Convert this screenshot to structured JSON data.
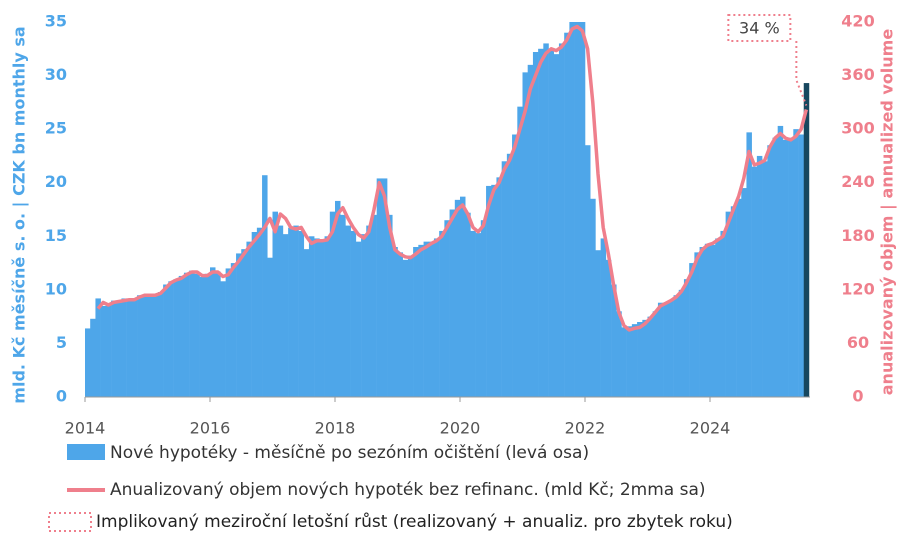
{
  "chart_data": {
    "type": "bar",
    "y_label": "mld. Kč měsíčně s. o. | CZK bn monthly sa",
    "y2_label": "anualizovaný objem | annualized volume",
    "x": [
      2014.0,
      2014.083,
      2014.167,
      2014.25,
      2014.333,
      2014.417,
      2014.5,
      2014.583,
      2014.667,
      2014.75,
      2014.833,
      2014.917,
      2015.0,
      2015.083,
      2015.167,
      2015.25,
      2015.333,
      2015.417,
      2015.5,
      2015.583,
      2015.667,
      2015.75,
      2015.833,
      2015.917,
      2016.0,
      2016.083,
      2016.167,
      2016.25,
      2016.333,
      2016.417,
      2016.5,
      2016.583,
      2016.667,
      2016.75,
      2016.833,
      2016.917,
      2017.0,
      2017.083,
      2017.167,
      2017.25,
      2017.333,
      2017.417,
      2017.5,
      2017.583,
      2017.667,
      2017.75,
      2017.833,
      2017.917,
      2018.0,
      2018.083,
      2018.167,
      2018.25,
      2018.333,
      2018.417,
      2018.5,
      2018.583,
      2018.667,
      2018.75,
      2018.833,
      2018.917,
      2019.0,
      2019.083,
      2019.167,
      2019.25,
      2019.333,
      2019.417,
      2019.5,
      2019.583,
      2019.667,
      2019.75,
      2019.833,
      2019.917,
      2020.0,
      2020.083,
      2020.167,
      2020.25,
      2020.333,
      2020.417,
      2020.5,
      2020.583,
      2020.667,
      2020.75,
      2020.833,
      2020.917,
      2021.0,
      2021.083,
      2021.167,
      2021.25,
      2021.333,
      2021.417,
      2021.5,
      2021.583,
      2021.667,
      2021.75,
      2021.833,
      2021.917,
      2022.0,
      2022.083,
      2022.167,
      2022.25,
      2022.333,
      2022.417,
      2022.5,
      2022.583,
      2022.667,
      2022.75,
      2022.833,
      2022.917,
      2023.0,
      2023.083,
      2023.167,
      2023.25,
      2023.333,
      2023.417,
      2023.5,
      2023.583,
      2023.667,
      2023.75,
      2023.833,
      2023.917,
      2024.0,
      2024.083,
      2024.167,
      2024.25,
      2024.333,
      2024.417,
      2024.5,
      2024.583,
      2024.667,
      2024.75,
      2024.833,
      2024.917,
      2025.0,
      2025.083,
      2025.167,
      2025.25,
      2025.333,
      2025.417,
      2025.5
    ],
    "series": [
      {
        "name": "Nové hypotéky - měsíčně po sezóním očištění (levá osa)",
        "type": "bar",
        "color": "#4ea6e9",
        "last_bar_color": "#17475f",
        "values": [
          6.4,
          7.3,
          9.2,
          8.5,
          8.7,
          9.0,
          8.8,
          9.2,
          9.0,
          9.2,
          9.5,
          9.5,
          9.5,
          9.5,
          9.8,
          10.5,
          10.8,
          11.0,
          11.3,
          11.6,
          11.8,
          11.5,
          11.2,
          11.5,
          12.1,
          11.7,
          10.8,
          12.0,
          12.5,
          13.4,
          13.8,
          14.5,
          15.4,
          15.8,
          20.7,
          13.0,
          17.3,
          16.0,
          15.2,
          15.8,
          16.0,
          15.5,
          13.8,
          15.0,
          14.8,
          14.6,
          15.0,
          17.3,
          18.3,
          17.0,
          16.0,
          15.5,
          14.5,
          15.2,
          16.0,
          17.0,
          20.4,
          20.4,
          17.0,
          14.0,
          13.5,
          12.8,
          13.2,
          14.0,
          14.2,
          14.5,
          14.5,
          14.8,
          15.5,
          16.5,
          17.5,
          18.4,
          18.7,
          17.2,
          15.5,
          15.3,
          16.5,
          19.7,
          19.8,
          20.5,
          22.0,
          22.7,
          24.5,
          27.1,
          30.3,
          31.0,
          32.2,
          32.5,
          33.0,
          32.5,
          32.0,
          33.0,
          34.0,
          35.0,
          35.0,
          35.0,
          23.5,
          18.5,
          13.7,
          14.8,
          12.8,
          10.5,
          8.0,
          6.5,
          6.6,
          6.8,
          7.0,
          7.2,
          7.5,
          8.0,
          8.8,
          8.8,
          9.0,
          9.5,
          10.0,
          11.0,
          12.5,
          13.5,
          14.0,
          14.3,
          14.2,
          14.8,
          15.5,
          17.3,
          17.8,
          18.5,
          19.5,
          24.7,
          21.5,
          22.5,
          22.0,
          23.5,
          24.2,
          25.3,
          24.0,
          24.2,
          25.0,
          24.5,
          29.3
        ]
      },
      {
        "name": "Anualizovaný objem nových hypoték bez refinanc. (mld Kč; 2mma sa)",
        "type": "line",
        "axis": "y2",
        "color": "#ef7f8c",
        "values": [
          null,
          null,
          99,
          106,
          103,
          106,
          107,
          108,
          109,
          109,
          112,
          114,
          114,
          114,
          116,
          122,
          128,
          131,
          133,
          137,
          140,
          140,
          136,
          136,
          140,
          140,
          135,
          137,
          145,
          152,
          160,
          168,
          175,
          182,
          190,
          200,
          185,
          205,
          200,
          190,
          188,
          190,
          180,
          172,
          175,
          175,
          176,
          185,
          205,
          212,
          200,
          190,
          182,
          178,
          185,
          210,
          240,
          225,
          190,
          165,
          160,
          157,
          156,
          160,
          165,
          168,
          172,
          175,
          180,
          190,
          200,
          210,
          215,
          205,
          190,
          185,
          192,
          215,
          232,
          240,
          255,
          265,
          280,
          300,
          320,
          345,
          360,
          375,
          385,
          390,
          388,
          392,
          400,
          412,
          415,
          410,
          390,
          330,
          250,
          190,
          160,
          125,
          95,
          80,
          75,
          77,
          78,
          82,
          88,
          95,
          102,
          105,
          108,
          112,
          118,
          128,
          140,
          155,
          165,
          170,
          172,
          176,
          180,
          195,
          210,
          225,
          245,
          275,
          260,
          262,
          265,
          280,
          290,
          295,
          290,
          288,
          292,
          300,
          322
        ]
      }
    ],
    "annotation": {
      "label": "34 %",
      "legend": "Implikovaný meziroční letošní růst (realizovaný + anualiz. pro zbytek roku)",
      "color": "#ef7f8c"
    },
    "xlim": [
      2014,
      2025.6
    ],
    "xticks": [
      2014,
      2016,
      2018,
      2020,
      2022,
      2024
    ],
    "ylim": [
      0,
      35
    ],
    "yticks": [
      0,
      5,
      10,
      15,
      20,
      25,
      30,
      35
    ],
    "y2lim": [
      0,
      420
    ],
    "y2ticks": [
      0,
      60,
      120,
      180,
      240,
      300,
      360,
      420
    ],
    "grid": false
  }
}
